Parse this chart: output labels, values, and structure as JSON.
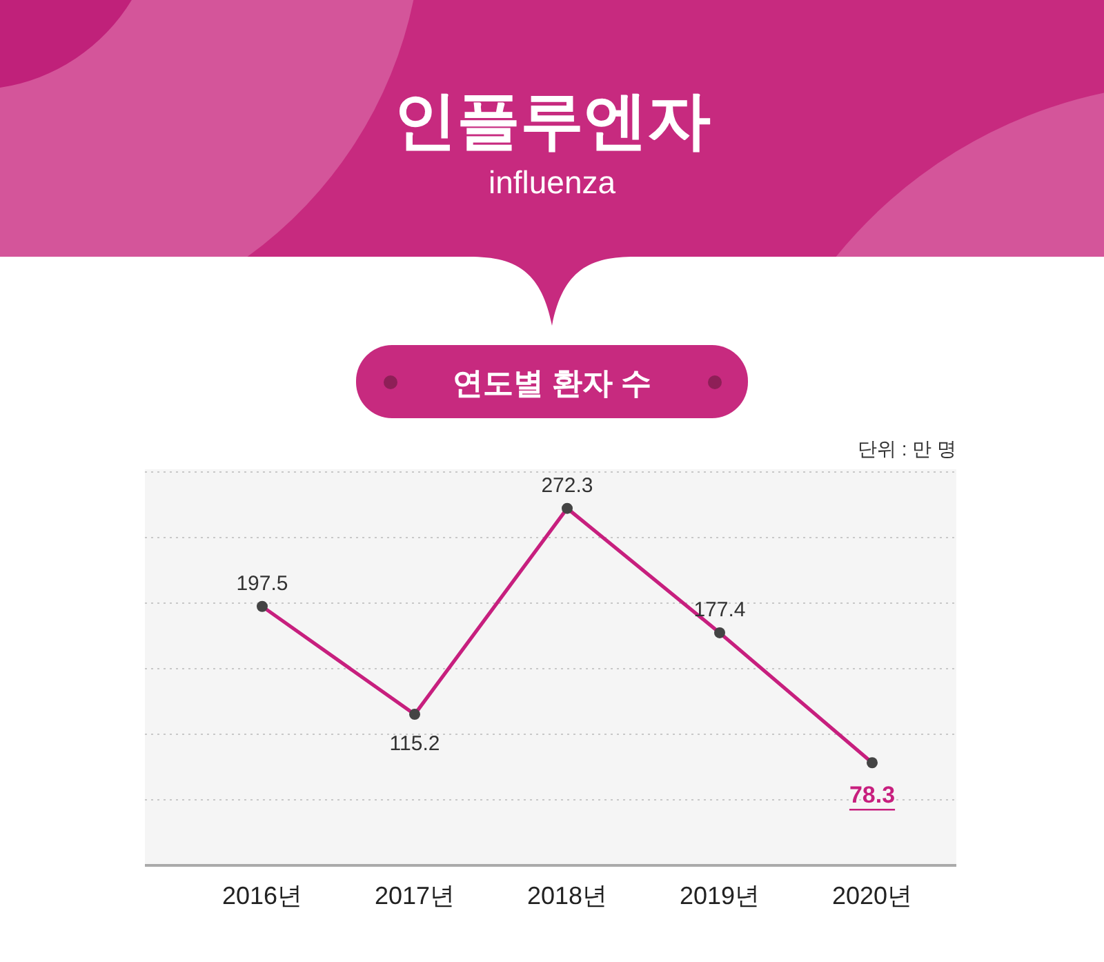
{
  "chart_data": {
    "type": "line",
    "title": "인플루엔자",
    "subtitle": "influenza",
    "annotations": [
      "연도별 환자 수",
      "단위 : 만 명"
    ],
    "categories": [
      "2016년",
      "2017년",
      "2018년",
      "2019년",
      "2020년"
    ],
    "series": [
      {
        "color": "#c71f7e",
        "values": [
          197.5,
          115.2,
          272.3,
          177.4,
          78.3
        ]
      }
    ],
    "ylim": [
      0,
      300
    ],
    "yticks": [
      {
        "value": 50,
        "label": null
      },
      {
        "value": 100,
        "label": null
      },
      {
        "value": 150,
        "label": null
      },
      {
        "value": 200,
        "label": null
      },
      {
        "value": 250,
        "label": null
      },
      {
        "value": 300,
        "label": null
      }
    ],
    "tick_labels": "x",
    "grid": "y",
    "data_labels": true,
    "marker": "circle",
    "line_style": "solid"
  }
}
